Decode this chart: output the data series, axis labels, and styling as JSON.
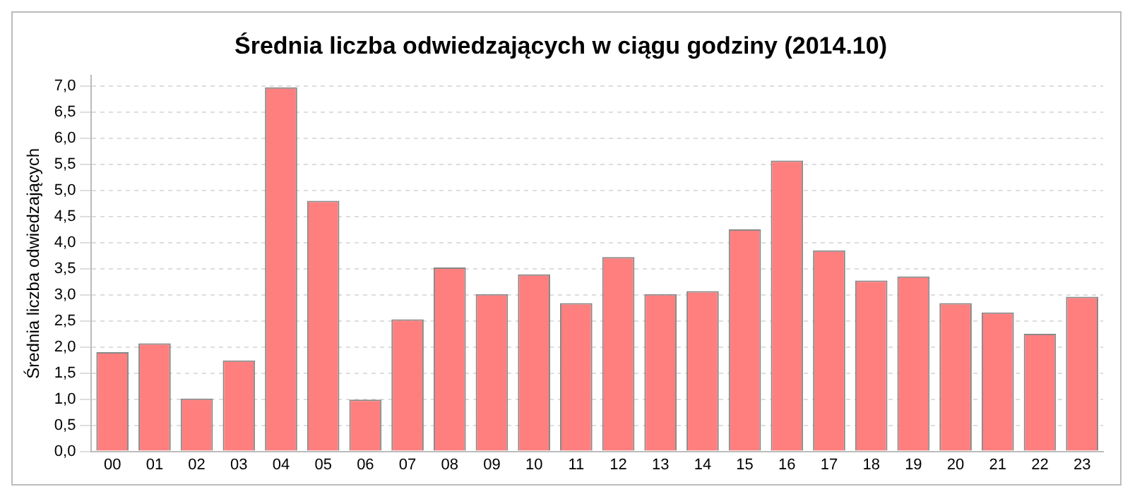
{
  "chart_data": {
    "type": "bar",
    "title": "Średnia liczba odwiedzających w ciągu godziny (2014.10)",
    "ylabel": "Średnia liczba odwiedzających",
    "categories": [
      "00",
      "01",
      "02",
      "03",
      "04",
      "05",
      "06",
      "07",
      "08",
      "09",
      "10",
      "11",
      "12",
      "13",
      "14",
      "15",
      "16",
      "17",
      "18",
      "19",
      "20",
      "21",
      "22",
      "23"
    ],
    "values": [
      1.9,
      2.07,
      1.01,
      1.74,
      6.97,
      4.8,
      0.99,
      2.53,
      3.52,
      3.01,
      3.39,
      2.84,
      3.72,
      3.01,
      3.07,
      4.25,
      5.57,
      3.85,
      3.27,
      3.35,
      2.84,
      2.66,
      2.25,
      2.96
    ],
    "color": "#ff7f7f",
    "ylim": [
      0,
      7.2
    ],
    "yticks": [
      {
        "value": 0,
        "label": "0,0"
      },
      {
        "value": 0.5,
        "label": "0,5"
      },
      {
        "value": 1,
        "label": "1,0"
      },
      {
        "value": 1.5,
        "label": "1,5"
      },
      {
        "value": 2,
        "label": "2,0"
      },
      {
        "value": 2.5,
        "label": "2,5"
      },
      {
        "value": 3,
        "label": "3,0"
      },
      {
        "value": 3.5,
        "label": "3,5"
      },
      {
        "value": 4,
        "label": "4,0"
      },
      {
        "value": 4.5,
        "label": "4,5"
      },
      {
        "value": 5,
        "label": "5,0"
      },
      {
        "value": 5.5,
        "label": "5,5"
      },
      {
        "value": 6,
        "label": "6,0"
      },
      {
        "value": 6.5,
        "label": "6,5"
      },
      {
        "value": 7,
        "label": "7,0"
      }
    ],
    "grid": "y",
    "legend": false
  }
}
